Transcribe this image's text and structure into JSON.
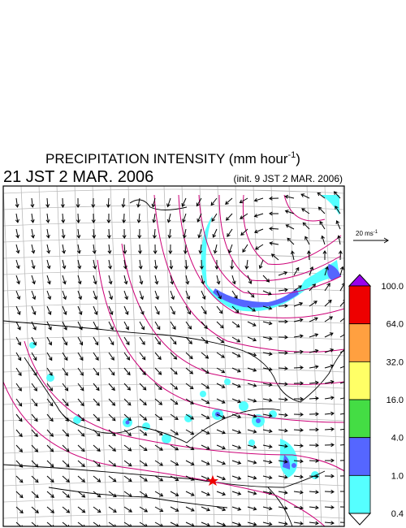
{
  "header": {
    "title": "PRECIPITATION INTENSITY (mm hour",
    "title_superscript": "-1",
    "title_end": ")",
    "valid_time": "21 JST 2 MAR. 2006",
    "init_time": "(init. 9 JST 2 MAR. 2006)"
  },
  "wind_scale": {
    "label": "20 ms",
    "superscript": "-1"
  },
  "colorbar": {
    "levels": [
      "100.0",
      "64.0",
      "32.0",
      "16.0",
      "4.0",
      "1.0",
      "0.4"
    ],
    "colors": [
      "#9900ee",
      "#ee0000",
      "#ffa040",
      "#ffff66",
      "#44dd44",
      "#5566ff",
      "#55ffff",
      "#ffffff"
    ]
  }
}
